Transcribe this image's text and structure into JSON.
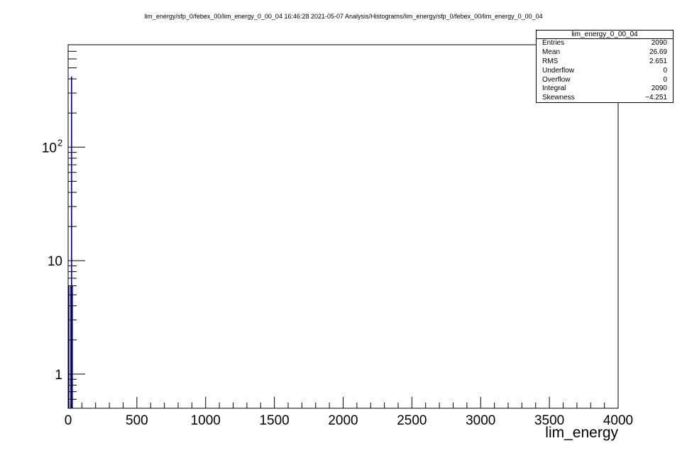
{
  "canvas_title": "lim_energy/sfp_0/febex_00/lim_energy_0_00_04  16:46:28  2021-05-07  Analysis/Histograms/lim_energy/sfp_0/febex_00/lim_energy_0_00_04",
  "stats": {
    "name": "lim_energy_0_00_04",
    "rows": [
      {
        "label": "Entries",
        "value": "2090"
      },
      {
        "label": "Mean",
        "value": "26.69"
      },
      {
        "label": "RMS",
        "value": "2.651"
      },
      {
        "label": "Underflow",
        "value": "0"
      },
      {
        "label": "Overflow",
        "value": "0"
      },
      {
        "label": "Integral",
        "value": "2090"
      },
      {
        "label": "Skewness",
        "value": "−4.251"
      }
    ]
  },
  "chart_data": {
    "type": "bar",
    "xlabel": "lim_energy",
    "ylabel": "",
    "xlim": [
      0,
      4000
    ],
    "ylim": [
      0.5,
      800
    ],
    "yscale": "log",
    "line_color": "#000080",
    "x_tick_labels": [
      "0",
      "500",
      "1000",
      "1500",
      "2000",
      "2500",
      "3000",
      "3500",
      "4000"
    ],
    "y_tick_labels": [
      {
        "value": 1,
        "label": "1"
      },
      {
        "value": 10,
        "label": "10"
      },
      {
        "value": 100,
        "label": "10",
        "exponent": "2"
      }
    ],
    "bins": [
      {
        "x": 0,
        "y": 6
      },
      {
        "x": 20,
        "y": 6
      },
      {
        "x": 25,
        "y": 420
      },
      {
        "x": 30,
        "y": 6
      }
    ]
  }
}
